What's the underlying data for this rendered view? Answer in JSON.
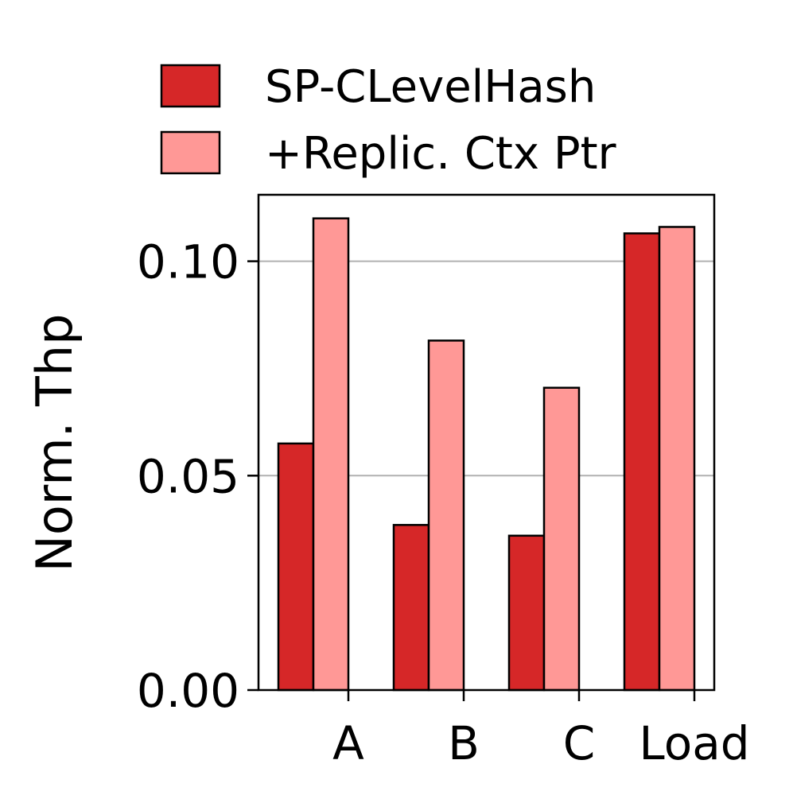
{
  "chart_data": {
    "type": "bar",
    "title": "",
    "xlabel": "",
    "ylabel": "Norm. Thp",
    "categories": [
      "A",
      "B",
      "C",
      "Load"
    ],
    "series": [
      {
        "name": "SP-CLevelHash",
        "values": [
          0.0575,
          0.0385,
          0.036,
          0.1065
        ],
        "color": "#d62728"
      },
      {
        "name": "+Replic. Ctx Ptr",
        "values": [
          0.11,
          0.0815,
          0.0705,
          0.108
        ],
        "color": "#ff9896"
      }
    ],
    "ylim": [
      0,
      0.1155
    ],
    "yticks": [
      0.0,
      0.05,
      0.1
    ],
    "ytick_labels": [
      "0.00",
      "0.05",
      "0.10"
    ],
    "grid": "horizontal",
    "legend_position": "top"
  }
}
